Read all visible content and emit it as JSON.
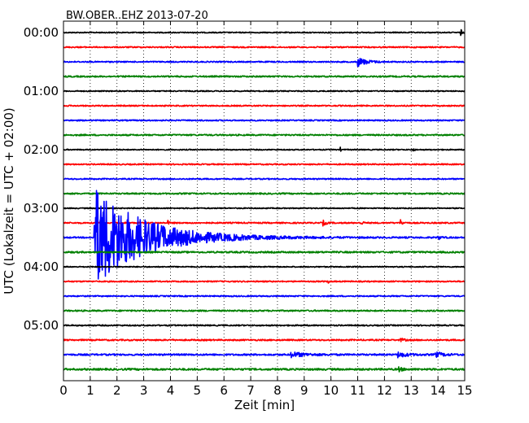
{
  "chart_data": {
    "type": "line",
    "title": "BW.OBER..EHZ 2013-07-20",
    "xlabel": "Zeit  [min]",
    "ylabel": "UTC (Lokalzeit = UTC + 02:00)",
    "xlim": [
      0,
      15
    ],
    "x_ticks": [
      "0",
      "1",
      "2",
      "3",
      "4",
      "5",
      "6",
      "7",
      "8",
      "9",
      "10",
      "11",
      "12",
      "13",
      "14",
      "15"
    ],
    "y_ticks": [
      "00:00",
      "01:00",
      "02:00",
      "03:00",
      "04:00",
      "05:00"
    ],
    "grid": "vertical dotted",
    "trace_interval_min": 15,
    "trace_colors": [
      "#000000",
      "#ff0000",
      "#0000ff",
      "#008000"
    ],
    "traces": [
      {
        "start": "00:00",
        "color": "#000000",
        "noise": 0.1,
        "events": [
          {
            "t": 14.85,
            "amp": 0.7,
            "dur": 0.12
          }
        ]
      },
      {
        "start": "00:15",
        "color": "#ff0000",
        "noise": 0.12,
        "events": []
      },
      {
        "start": "00:30",
        "color": "#0000ff",
        "noise": 0.12,
        "events": [
          {
            "t": 11.0,
            "amp": 0.9,
            "dur": 0.9
          }
        ]
      },
      {
        "start": "00:45",
        "color": "#008000",
        "noise": 0.14,
        "events": []
      },
      {
        "start": "01:00",
        "color": "#000000",
        "noise": 0.1,
        "events": []
      },
      {
        "start": "01:15",
        "color": "#ff0000",
        "noise": 0.12,
        "events": []
      },
      {
        "start": "01:30",
        "color": "#0000ff",
        "noise": 0.12,
        "events": []
      },
      {
        "start": "01:45",
        "color": "#008000",
        "noise": 0.14,
        "events": []
      },
      {
        "start": "02:00",
        "color": "#000000",
        "noise": 0.1,
        "events": [
          {
            "t": 10.35,
            "amp": 0.4,
            "dur": 0.08
          },
          {
            "t": 13.05,
            "amp": 0.5,
            "dur": 0.12
          }
        ]
      },
      {
        "start": "02:15",
        "color": "#ff0000",
        "noise": 0.12,
        "events": []
      },
      {
        "start": "02:30",
        "color": "#0000ff",
        "noise": 0.12,
        "events": []
      },
      {
        "start": "02:45",
        "color": "#008000",
        "noise": 0.14,
        "events": []
      },
      {
        "start": "03:00",
        "color": "#000000",
        "noise": 0.1,
        "events": []
      },
      {
        "start": "03:15",
        "color": "#ff0000",
        "noise": 0.13,
        "events": [
          {
            "t": 3.9,
            "amp": 0.4,
            "dur": 0.15
          },
          {
            "t": 9.7,
            "amp": 0.5,
            "dur": 0.3
          },
          {
            "t": 11.1,
            "amp": 0.5,
            "dur": 0.2
          },
          {
            "t": 12.6,
            "amp": 0.6,
            "dur": 0.2
          }
        ]
      },
      {
        "start": "03:30",
        "color": "#0000ff",
        "noise": 0.14,
        "events": [
          {
            "t": 1.15,
            "amp": 10.0,
            "dur": 5.0
          },
          {
            "t": 14.0,
            "amp": 0.4,
            "dur": 0.3
          }
        ]
      },
      {
        "start": "03:45",
        "color": "#008000",
        "noise": 0.16,
        "events": []
      },
      {
        "start": "04:00",
        "color": "#000000",
        "noise": 0.1,
        "events": []
      },
      {
        "start": "04:15",
        "color": "#ff0000",
        "noise": 0.12,
        "events": [
          {
            "t": 9.9,
            "amp": 0.3,
            "dur": 0.1
          }
        ]
      },
      {
        "start": "04:30",
        "color": "#0000ff",
        "noise": 0.12,
        "events": []
      },
      {
        "start": "04:45",
        "color": "#008000",
        "noise": 0.14,
        "events": []
      },
      {
        "start": "05:00",
        "color": "#000000",
        "noise": 0.12,
        "events": []
      },
      {
        "start": "05:15",
        "color": "#ff0000",
        "noise": 0.14,
        "events": [
          {
            "t": 12.6,
            "amp": 0.3,
            "dur": 0.4
          }
        ]
      },
      {
        "start": "05:30",
        "color": "#0000ff",
        "noise": 0.16,
        "events": [
          {
            "t": 8.5,
            "amp": 0.5,
            "dur": 1.5
          },
          {
            "t": 12.5,
            "amp": 0.5,
            "dur": 1.0
          },
          {
            "t": 13.9,
            "amp": 0.5,
            "dur": 0.8
          }
        ]
      },
      {
        "start": "05:45",
        "color": "#008000",
        "noise": 0.18,
        "events": [
          {
            "t": 12.5,
            "amp": 0.5,
            "dur": 0.4
          }
        ]
      }
    ]
  }
}
